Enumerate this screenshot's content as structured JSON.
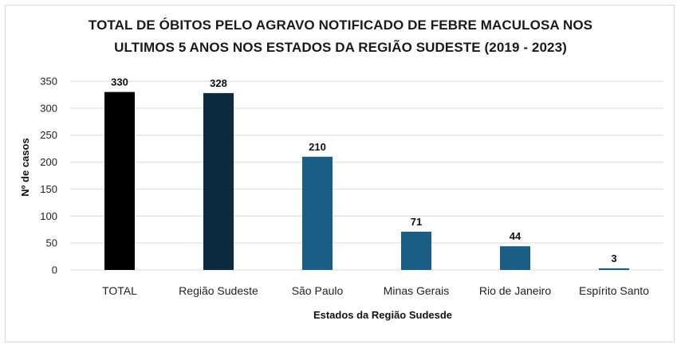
{
  "chart_data": {
    "type": "bar",
    "title_lines": [
      "TOTAL DE ÓBITOS PELO AGRAVO NOTIFICADO DE FEBRE MACULOSA NOS",
      "ULTIMOS 5 ANOS NOS ESTADOS DA REGIÃO SUDESTE (2019 - 2023)"
    ],
    "categories": [
      "TOTAL",
      "Região Sudeste",
      "São Paulo",
      "Minas Gerais",
      "Rio de Janeiro",
      "Espírito Santo"
    ],
    "values": [
      330,
      328,
      210,
      71,
      44,
      3
    ],
    "bar_colors": [
      "#000000",
      "#0d2b3e",
      "#1a5e86",
      "#1a5e86",
      "#1a5e86",
      "#1a5e86"
    ],
    "xlabel": "Estados da Região Sudesde",
    "ylabel": "Nº de casos",
    "ylim": [
      0,
      350
    ],
    "yticks": [
      0,
      50,
      100,
      150,
      200,
      250,
      300,
      350
    ],
    "grid": true,
    "data_labels": true
  }
}
